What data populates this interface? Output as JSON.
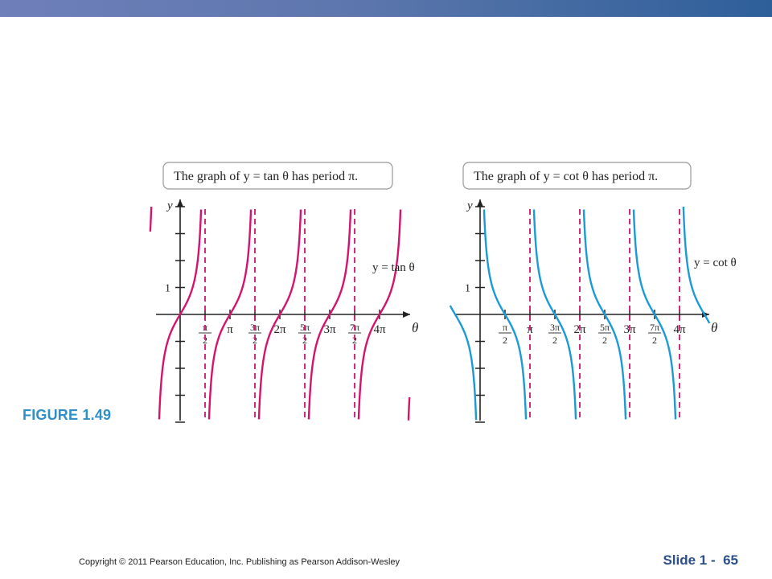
{
  "header": {
    "bar_color_start": "#6f7fb9",
    "bar_color_end": "#2e5f99"
  },
  "figure_label": "FIGURE 1.49",
  "footer": {
    "copyright": "Copyright © 2011 Pearson Education, Inc.  Publishing as Pearson Addison-Wesley",
    "slide_word": "Slide",
    "slide_number": "1 -  65"
  },
  "chart_data": [
    {
      "type": "line",
      "function": "tan",
      "title": "The graph of y = tan θ has period π.",
      "curve_label": "y = tan θ",
      "xlabel": "θ",
      "ylabel": "y",
      "y_tick_label": "1",
      "x_ticks": [
        "π/2",
        "π",
        "3π/2",
        "2π",
        "5π/2",
        "3π",
        "7π/2",
        "4π"
      ],
      "asymptotes": [
        "π/2",
        "3π/2",
        "5π/2",
        "7π/2"
      ],
      "xlim": [
        -0.6,
        4.6
      ],
      "ylim": [
        -4,
        4.5
      ],
      "color": "#d4136f",
      "asymptote_color": "#d4136f"
    },
    {
      "type": "line",
      "function": "cot",
      "title": "The graph of y = cot θ has period π.",
      "curve_label": "y = cot θ",
      "xlabel": "θ",
      "ylabel": "y",
      "y_tick_label": "1",
      "x_ticks": [
        "π/2",
        "π",
        "3π/2",
        "2π",
        "5π/2",
        "3π",
        "7π/2",
        "4π"
      ],
      "asymptotes": [
        "π",
        "2π",
        "3π",
        "4π"
      ],
      "xlim": [
        -0.6,
        4.6
      ],
      "ylim": [
        -4,
        4.5
      ],
      "color": "#1a9ad6",
      "asymptote_color": "#d4136f"
    }
  ]
}
